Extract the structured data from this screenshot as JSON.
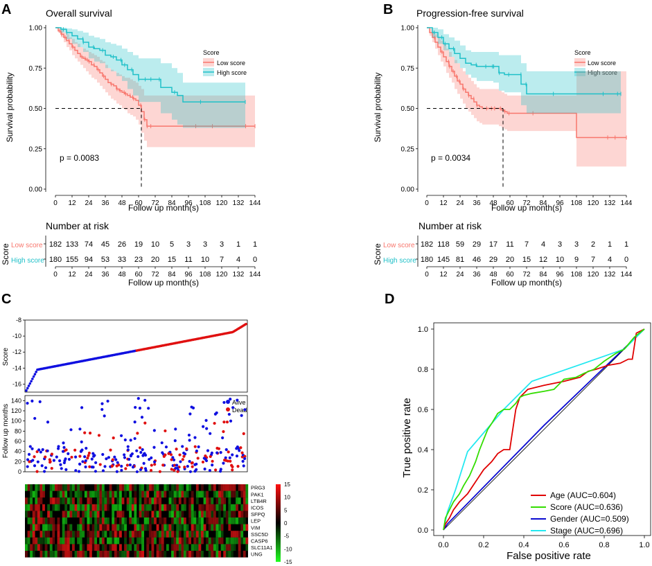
{
  "panels": {
    "a": "A",
    "b": "B",
    "c": "C",
    "d": "D"
  },
  "colors": {
    "low": "#F8766D",
    "high": "#1FC0C8",
    "ci_low": "#F8766D",
    "ci_high": "#1FC0C8",
    "blue_dot": "#1010E0",
    "red_dot": "#E01010",
    "age": "#E00000",
    "score": "#33DD00",
    "gender": "#0A0AD0",
    "stage": "#22E8F0"
  },
  "chart_data": [
    {
      "id": "A",
      "type": "line",
      "title": "Overall survival",
      "xlabel": "Follow up month(s)",
      "ylabel": "Survival probability",
      "xlim": [
        0,
        144
      ],
      "ylim": [
        0,
        1
      ],
      "xticks": [
        "0",
        "12",
        "24",
        "36",
        "48",
        "60",
        "72",
        "84",
        "96",
        "108",
        "120",
        "132",
        "144"
      ],
      "yticks": [
        "0.00",
        "0.25",
        "0.50",
        "0.75",
        "1.00"
      ],
      "pvalue": "p = 0.0083",
      "legend": {
        "title": "Score",
        "items": [
          "Low score",
          "High score"
        ]
      },
      "median": {
        "low": 62
      },
      "series": [
        {
          "name": "Low score",
          "t": [
            0,
            2,
            4,
            6,
            8,
            10,
            12,
            14,
            16,
            18,
            20,
            22,
            24,
            26,
            28,
            30,
            32,
            34,
            36,
            38,
            40,
            42,
            44,
            46,
            48,
            50,
            52,
            54,
            56,
            58,
            60,
            62,
            64,
            66,
            68,
            70,
            72,
            84,
            96,
            108,
            120,
            132,
            144
          ],
          "s": [
            1,
            0.98,
            0.96,
            0.94,
            0.92,
            0.9,
            0.88,
            0.86,
            0.84,
            0.82,
            0.81,
            0.8,
            0.79,
            0.77,
            0.76,
            0.74,
            0.72,
            0.7,
            0.68,
            0.66,
            0.65,
            0.64,
            0.62,
            0.61,
            0.6,
            0.59,
            0.58,
            0.57,
            0.56,
            0.55,
            0.52,
            0.48,
            0.43,
            0.39,
            0.39,
            0.39,
            0.39,
            0.39,
            0.39,
            0.39,
            0.39,
            0.39,
            0.39
          ],
          "lower": [
            1,
            0.97,
            0.94,
            0.91,
            0.88,
            0.86,
            0.83,
            0.81,
            0.79,
            0.77,
            0.75,
            0.73,
            0.71,
            0.69,
            0.68,
            0.66,
            0.64,
            0.62,
            0.6,
            0.58,
            0.56,
            0.55,
            0.53,
            0.52,
            0.5,
            0.49,
            0.47,
            0.46,
            0.45,
            0.43,
            0.4,
            0.35,
            0.3,
            0.26,
            0.26,
            0.26,
            0.26,
            0.26,
            0.26,
            0.26,
            0.26,
            0.26,
            0.26
          ],
          "upper": [
            1,
            0.995,
            0.985,
            0.97,
            0.96,
            0.94,
            0.93,
            0.91,
            0.9,
            0.88,
            0.87,
            0.86,
            0.85,
            0.84,
            0.83,
            0.82,
            0.8,
            0.79,
            0.77,
            0.75,
            0.74,
            0.73,
            0.72,
            0.71,
            0.7,
            0.69,
            0.69,
            0.68,
            0.67,
            0.66,
            0.64,
            0.62,
            0.58,
            0.58,
            0.58,
            0.58,
            0.58,
            0.58,
            0.58,
            0.58,
            0.58,
            0.58,
            0.58
          ]
        },
        {
          "name": "High score",
          "t": [
            0,
            4,
            8,
            12,
            16,
            20,
            24,
            28,
            32,
            36,
            40,
            44,
            48,
            52,
            56,
            60,
            64,
            68,
            72,
            76,
            80,
            84,
            88,
            92,
            96,
            108,
            120,
            132,
            137
          ],
          "s": [
            1,
            0.99,
            0.97,
            0.95,
            0.93,
            0.91,
            0.88,
            0.87,
            0.86,
            0.83,
            0.82,
            0.8,
            0.77,
            0.74,
            0.71,
            0.68,
            0.68,
            0.68,
            0.68,
            0.63,
            0.63,
            0.6,
            0.58,
            0.54,
            0.54,
            0.54,
            0.54,
            0.54,
            0.54
          ],
          "lower": [
            1,
            0.97,
            0.93,
            0.9,
            0.88,
            0.85,
            0.81,
            0.79,
            0.78,
            0.75,
            0.73,
            0.7,
            0.67,
            0.62,
            0.58,
            0.54,
            0.54,
            0.54,
            0.54,
            0.47,
            0.47,
            0.43,
            0.4,
            0.38,
            0.38,
            0.38,
            0.38,
            0.38,
            0.38
          ],
          "upper": [
            1,
            1,
            0.995,
            0.99,
            0.98,
            0.97,
            0.95,
            0.94,
            0.93,
            0.91,
            0.9,
            0.89,
            0.87,
            0.85,
            0.83,
            0.81,
            0.81,
            0.81,
            0.81,
            0.78,
            0.78,
            0.75,
            0.72,
            0.66,
            0.66,
            0.66,
            0.66,
            0.66,
            0.66
          ]
        }
      ],
      "risk": {
        "title": "Number at risk",
        "ylabel": "Score",
        "rows": [
          {
            "name": "Low score",
            "values": [
              "182",
              "133",
              "74",
              "45",
              "26",
              "19",
              "10",
              "5",
              "3",
              "3",
              "3",
              "1",
              "1"
            ]
          },
          {
            "name": "High score",
            "values": [
              "180",
              "155",
              "94",
              "53",
              "33",
              "23",
              "20",
              "15",
              "11",
              "10",
              "7",
              "4",
              "0"
            ]
          }
        ]
      }
    },
    {
      "id": "B",
      "type": "line",
      "title": "Progression-free survival",
      "xlabel": "Follow up month(s)",
      "ylabel": "Survival probability",
      "xlim": [
        0,
        144
      ],
      "ylim": [
        0,
        1
      ],
      "xticks": [
        "0",
        "12",
        "24",
        "36",
        "48",
        "60",
        "72",
        "84",
        "96",
        "108",
        "120",
        "132",
        "144"
      ],
      "yticks": [
        "0.00",
        "0.25",
        "0.50",
        "0.75",
        "1.00"
      ],
      "pvalue": "p = 0.0034",
      "legend": {
        "title": "Score",
        "items": [
          "Low score",
          "High score"
        ]
      },
      "median": {
        "low": 55
      },
      "series": [
        {
          "name": "Low score",
          "t": [
            0,
            2,
            4,
            6,
            8,
            10,
            12,
            14,
            16,
            18,
            20,
            22,
            24,
            26,
            28,
            30,
            32,
            34,
            36,
            38,
            40,
            42,
            44,
            46,
            48,
            50,
            52,
            54,
            56,
            58,
            60,
            72,
            84,
            96,
            108,
            120,
            132,
            144
          ],
          "s": [
            1,
            0.97,
            0.94,
            0.91,
            0.88,
            0.85,
            0.82,
            0.79,
            0.76,
            0.73,
            0.7,
            0.67,
            0.65,
            0.62,
            0.6,
            0.58,
            0.56,
            0.54,
            0.52,
            0.51,
            0.5,
            0.5,
            0.5,
            0.5,
            0.5,
            0.5,
            0.5,
            0.49,
            0.48,
            0.47,
            0.47,
            0.47,
            0.47,
            0.47,
            0.32,
            0.32,
            0.32,
            0.32
          ],
          "lower": [
            1,
            0.95,
            0.91,
            0.87,
            0.83,
            0.79,
            0.76,
            0.72,
            0.69,
            0.66,
            0.62,
            0.59,
            0.56,
            0.53,
            0.5,
            0.48,
            0.46,
            0.44,
            0.42,
            0.41,
            0.4,
            0.4,
            0.4,
            0.4,
            0.4,
            0.4,
            0.39,
            0.38,
            0.37,
            0.36,
            0.36,
            0.36,
            0.36,
            0.36,
            0.14,
            0.14,
            0.14,
            0.14
          ],
          "upper": [
            1,
            0.995,
            0.98,
            0.96,
            0.94,
            0.92,
            0.9,
            0.87,
            0.85,
            0.82,
            0.8,
            0.78,
            0.75,
            0.73,
            0.71,
            0.69,
            0.67,
            0.65,
            0.63,
            0.62,
            0.62,
            0.62,
            0.62,
            0.62,
            0.62,
            0.62,
            0.61,
            0.6,
            0.59,
            0.58,
            0.58,
            0.58,
            0.58,
            0.58,
            0.73,
            0.73,
            0.73,
            0.73
          ]
        },
        {
          "name": "High score",
          "t": [
            0,
            4,
            8,
            12,
            16,
            20,
            24,
            28,
            32,
            36,
            40,
            44,
            48,
            52,
            56,
            60,
            64,
            68,
            72,
            84,
            96,
            108,
            120,
            132,
            140
          ],
          "s": [
            1,
            0.97,
            0.94,
            0.9,
            0.87,
            0.84,
            0.81,
            0.78,
            0.77,
            0.76,
            0.76,
            0.76,
            0.76,
            0.72,
            0.71,
            0.71,
            0.71,
            0.65,
            0.59,
            0.59,
            0.59,
            0.59,
            0.59,
            0.59,
            0.59
          ],
          "lower": [
            1,
            0.94,
            0.9,
            0.86,
            0.82,
            0.78,
            0.75,
            0.71,
            0.69,
            0.67,
            0.67,
            0.67,
            0.66,
            0.61,
            0.6,
            0.6,
            0.6,
            0.52,
            0.47,
            0.47,
            0.47,
            0.47,
            0.47,
            0.47,
            0.47
          ],
          "upper": [
            1,
            1,
            0.99,
            0.96,
            0.94,
            0.92,
            0.89,
            0.86,
            0.85,
            0.85,
            0.85,
            0.85,
            0.85,
            0.83,
            0.83,
            0.83,
            0.83,
            0.78,
            0.73,
            0.73,
            0.73,
            0.73,
            0.73,
            0.73,
            0.73
          ]
        }
      ],
      "risk": {
        "title": "Number at risk",
        "ylabel": "Score",
        "rows": [
          {
            "name": "Low score",
            "values": [
              "182",
              "118",
              "59",
              "29",
              "17",
              "11",
              "7",
              "4",
              "3",
              "3",
              "2",
              "1",
              "1"
            ]
          },
          {
            "name": "High score",
            "values": [
              "180",
              "145",
              "81",
              "46",
              "29",
              "20",
              "15",
              "12",
              "10",
              "9",
              "7",
              "4",
              "0"
            ]
          }
        ]
      }
    },
    {
      "id": "C",
      "type": "scatter",
      "score_plot": {
        "ylabel": "Score",
        "ylim": [
          -17,
          -8
        ],
        "yticks": [
          "-8",
          "-10",
          "-12",
          "-14",
          "-16"
        ],
        "n": 362,
        "min": -16.8,
        "max": -8.5
      },
      "survival_plot": {
        "ylabel": "Follow up months",
        "ylim": [
          0,
          150
        ],
        "yticks": [
          "0",
          "20",
          "40",
          "60",
          "80",
          "100",
          "120",
          "140"
        ],
        "legend": [
          "Alive",
          "Dead"
        ]
      },
      "heatmap": {
        "genes": [
          "PRG3",
          "PAK1",
          "LTB4R",
          "ICOS",
          "SFPQ",
          "LEP",
          "VIM",
          "SSC5D",
          "CASP6",
          "SLC11A1",
          "UNG"
        ],
        "colorbar": [
          "15",
          "10",
          "5",
          "0",
          "-5",
          "-10",
          "-15"
        ],
        "range": [
          -15,
          15
        ]
      }
    },
    {
      "id": "D",
      "type": "line",
      "xlabel": "False positive rate",
      "ylabel": "True positive rate",
      "xlim": [
        0,
        1
      ],
      "ylim": [
        0,
        1
      ],
      "xticks": [
        "0.0",
        "0.2",
        "0.4",
        "0.6",
        "0.8",
        "1.0"
      ],
      "yticks": [
        "0.0",
        "0.2",
        "0.4",
        "0.6",
        "0.8",
        "1.0"
      ],
      "series": [
        {
          "name": "Age",
          "label": "Age (AUC=0.604)",
          "x": [
            0,
            0.01,
            0.03,
            0.05,
            0.08,
            0.12,
            0.16,
            0.2,
            0.24,
            0.27,
            0.3,
            0.33,
            0.36,
            0.38,
            0.4,
            0.42,
            0.5,
            0.6,
            0.68,
            0.72,
            0.76,
            0.82,
            0.88,
            0.92,
            0.94,
            0.96,
            1
          ],
          "y": [
            0,
            0.03,
            0.06,
            0.1,
            0.14,
            0.18,
            0.24,
            0.3,
            0.34,
            0.38,
            0.4,
            0.4,
            0.6,
            0.66,
            0.68,
            0.7,
            0.72,
            0.74,
            0.76,
            0.79,
            0.8,
            0.82,
            0.83,
            0.85,
            0.85,
            0.98,
            1
          ]
        },
        {
          "name": "Score",
          "label": "Score (AUC=0.636)",
          "x": [
            0,
            0.01,
            0.03,
            0.05,
            0.08,
            0.1,
            0.13,
            0.16,
            0.18,
            0.2,
            0.22,
            0.24,
            0.27,
            0.3,
            0.33,
            0.36,
            0.38,
            0.4,
            0.44,
            0.5,
            0.55,
            0.6,
            0.66,
            0.7,
            0.75,
            0.8,
            0.86,
            0.9,
            0.95,
            1
          ],
          "y": [
            0,
            0.06,
            0.1,
            0.14,
            0.18,
            0.22,
            0.27,
            0.34,
            0.4,
            0.45,
            0.5,
            0.53,
            0.58,
            0.6,
            0.6,
            0.63,
            0.66,
            0.67,
            0.68,
            0.69,
            0.7,
            0.75,
            0.76,
            0.78,
            0.8,
            0.84,
            0.88,
            0.9,
            0.96,
            1
          ]
        },
        {
          "name": "Gender",
          "label": "Gender (AUC=0.509)",
          "x": [
            0,
            0.02,
            0.5,
            1
          ],
          "y": [
            0,
            0.03,
            0.52,
            1
          ]
        },
        {
          "name": "Stage",
          "label": "Stage (AUC=0.696)",
          "x": [
            0,
            0.02,
            0.06,
            0.12,
            0.3,
            0.44,
            0.7,
            0.9,
            1
          ],
          "y": [
            0,
            0.09,
            0.2,
            0.39,
            0.6,
            0.74,
            0.83,
            0.9,
            1
          ]
        }
      ]
    }
  ]
}
